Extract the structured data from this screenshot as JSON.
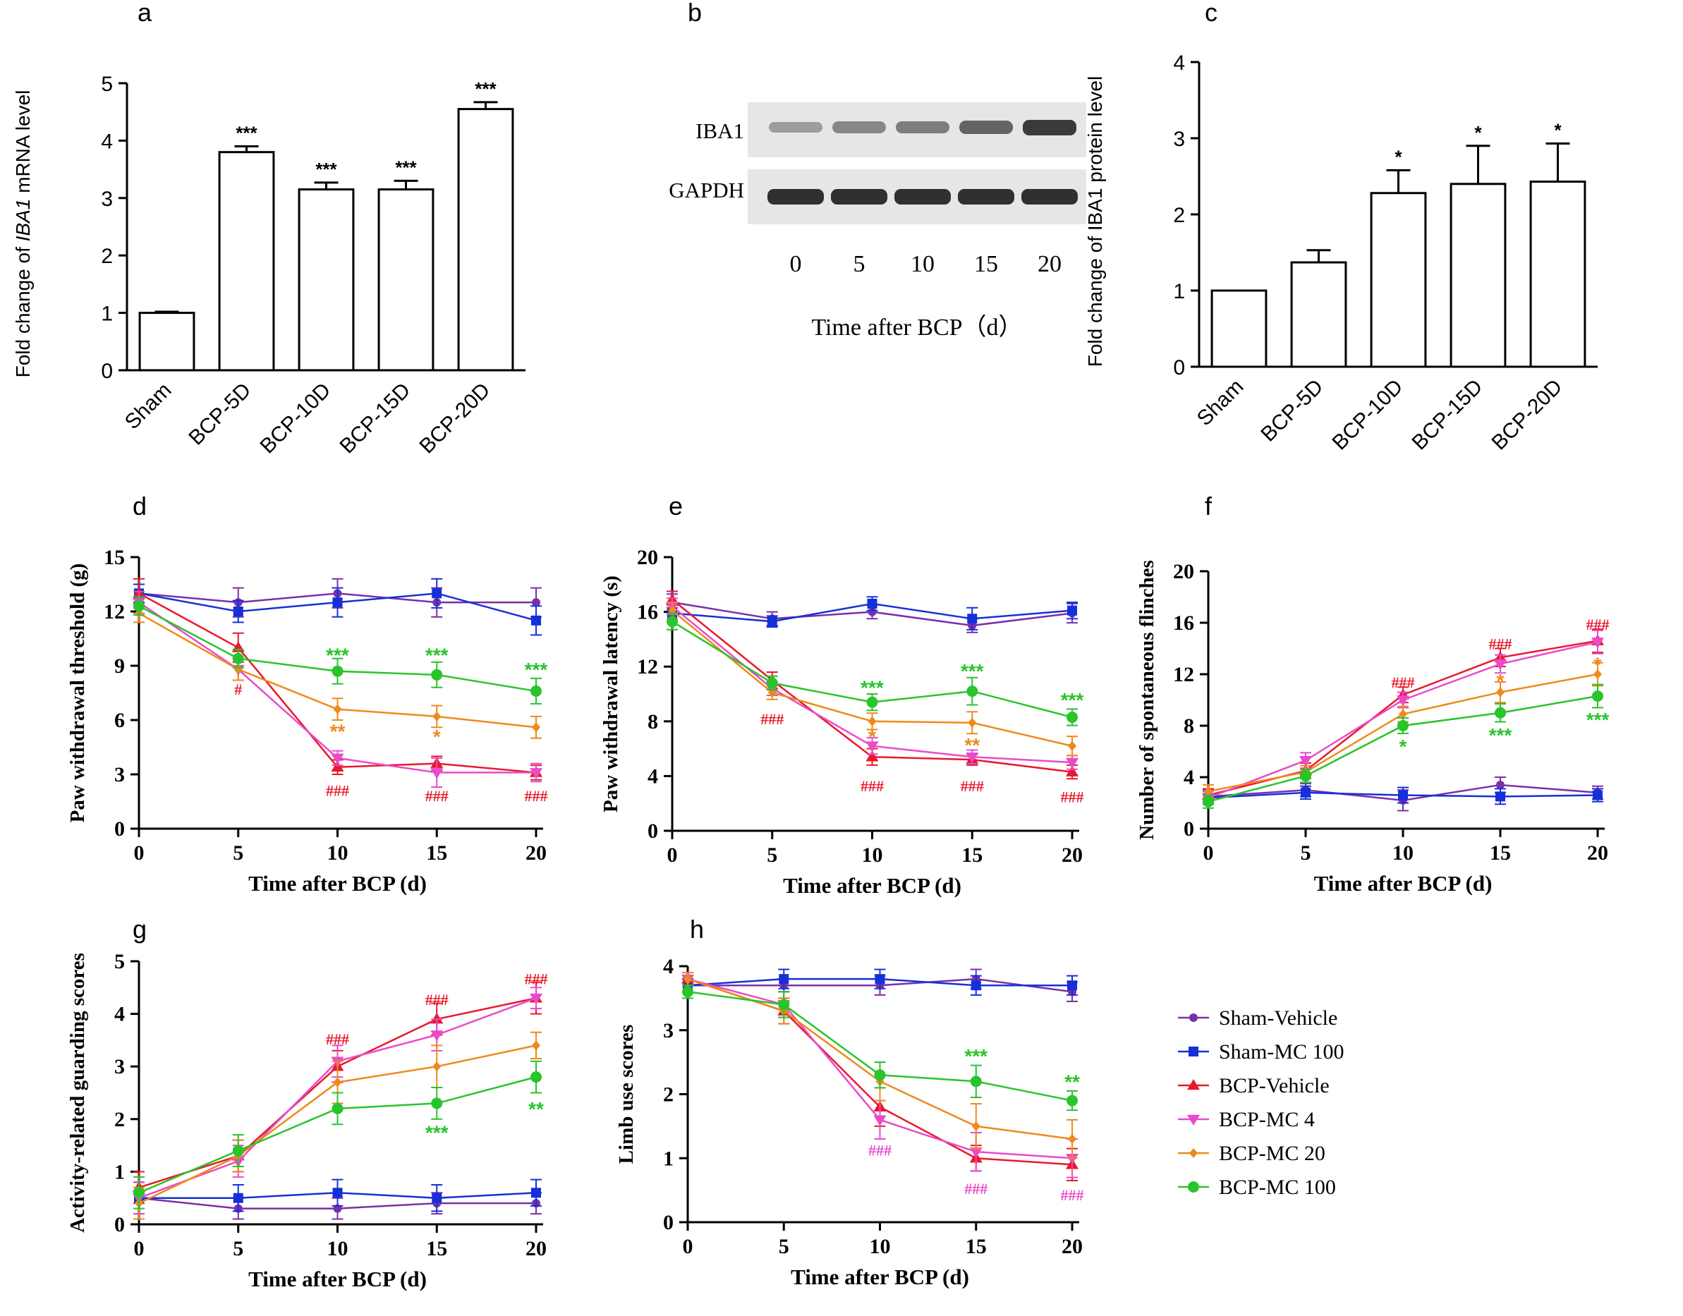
{
  "colors": {
    "sham_vehicle": "#7B2FA8",
    "sham_mc100": "#1530D8",
    "bcp_vehicle": "#E8192C",
    "bcp_mc4": "#E94BC9",
    "bcp_mc20": "#EE8A1C",
    "bcp_mc100": "#29C42C"
  },
  "panels": {
    "a": "a",
    "b": "b",
    "c": "c",
    "d": "d",
    "e": "e",
    "f": "f",
    "g": "g",
    "h": "h"
  },
  "blot": {
    "labels": [
      "IBA1",
      "GAPDH"
    ],
    "lanes": [
      "0",
      "5",
      "10",
      "15",
      "20"
    ],
    "xlabel": "Time after  BCP（d）",
    "iba1_intensity": [
      0.35,
      0.45,
      0.5,
      0.62,
      0.82
    ],
    "gapdh_intensity": [
      0.85,
      0.85,
      0.85,
      0.85,
      0.85
    ]
  },
  "legend": [
    "Sham-Vehicle",
    "Sham-MC 100",
    "BCP-Vehicle",
    "BCP-MC 4",
    "BCP-MC 20",
    "BCP-MC 100"
  ],
  "chart_data": [
    {
      "id": "a",
      "type": "bar",
      "ylabel_prefix": "Fold change of ",
      "ylabel_italic": "IBA1",
      "ylabel_suffix": " mRNA level",
      "categories": [
        "Sham",
        "BCP-5D",
        "BCP-10D",
        "BCP-15D",
        "BCP-20D"
      ],
      "values": [
        1.0,
        3.8,
        3.15,
        3.15,
        4.55
      ],
      "errors": [
        0.02,
        0.1,
        0.12,
        0.15,
        0.12
      ],
      "stars": [
        "",
        "***",
        "***",
        "***",
        "***"
      ],
      "ylim": [
        0,
        5
      ],
      "yticks": [
        "0",
        "1",
        "2",
        "3",
        "4",
        "5"
      ]
    },
    {
      "id": "c",
      "type": "bar",
      "ylabel": "Fold change of IBA1 protein level",
      "categories": [
        "Sham",
        "BCP-5D",
        "BCP-10D",
        "BCP-15D",
        "BCP-20D"
      ],
      "values": [
        1.0,
        1.37,
        2.28,
        2.4,
        2.43
      ],
      "errors": [
        0.0,
        0.16,
        0.3,
        0.5,
        0.5
      ],
      "stars": [
        "",
        "",
        "*",
        "*",
        "*"
      ],
      "ylim": [
        0,
        4
      ],
      "yticks": [
        "0",
        "1",
        "2",
        "3",
        "4"
      ]
    },
    {
      "id": "d",
      "type": "line",
      "xlabel": "Time after BCP (d)",
      "ylabel": "Paw withdrawal threshold (g)",
      "x": [
        0,
        5,
        10,
        15,
        20
      ],
      "xticks": [
        "0",
        "5",
        "10",
        "15",
        "20"
      ],
      "ylim": [
        0,
        15
      ],
      "yticks": [
        "0",
        "3",
        "6",
        "9",
        "12",
        "15"
      ],
      "series": [
        {
          "name": "Sham-Vehicle",
          "values": [
            13.0,
            12.5,
            13.0,
            12.5,
            12.5
          ],
          "errors": [
            0.5,
            0.8,
            0.8,
            0.8,
            0.8
          ]
        },
        {
          "name": "Sham-MC 100",
          "values": [
            13.0,
            12.0,
            12.5,
            13.0,
            11.5
          ],
          "errors": [
            0.5,
            0.6,
            0.8,
            0.8,
            0.8
          ]
        },
        {
          "name": "BCP-Vehicle",
          "values": [
            13.0,
            10.0,
            3.4,
            3.6,
            3.1
          ],
          "errors": [
            0.8,
            0.8,
            0.4,
            0.4,
            0.4
          ]
        },
        {
          "name": "BCP-MC 4",
          "values": [
            12.5,
            8.8,
            3.9,
            3.1,
            3.1
          ],
          "errors": [
            0.6,
            0.6,
            0.4,
            0.8,
            0.5
          ]
        },
        {
          "name": "BCP-MC 20",
          "values": [
            11.9,
            8.8,
            6.6,
            6.2,
            5.6
          ],
          "errors": [
            0.5,
            0.6,
            0.6,
            0.6,
            0.6
          ]
        },
        {
          "name": "BCP-MC 100",
          "values": [
            12.3,
            9.4,
            8.7,
            8.5,
            7.6
          ],
          "errors": [
            0.5,
            0.5,
            0.7,
            0.7,
            0.7
          ]
        }
      ],
      "annotations": [
        {
          "text": "***",
          "x": 10,
          "y": 9.6,
          "series": 5
        },
        {
          "text": "***",
          "x": 15,
          "y": 9.6,
          "series": 5
        },
        {
          "text": "***",
          "x": 20,
          "y": 8.8,
          "series": 5
        },
        {
          "text": "**",
          "x": 10,
          "y": 5.4,
          "series": 4
        },
        {
          "text": "*",
          "x": 15,
          "y": 5.1,
          "series": 4
        },
        {
          "text": "#",
          "x": 5,
          "y": 7.8,
          "series": 2
        },
        {
          "text": "###",
          "x": 10,
          "y": 2.2,
          "series": 2
        },
        {
          "text": "###",
          "x": 15,
          "y": 1.9,
          "series": 2
        },
        {
          "text": "###",
          "x": 20,
          "y": 1.9,
          "series": 2
        }
      ]
    },
    {
      "id": "e",
      "type": "line",
      "xlabel": "Time after BCP (d)",
      "ylabel": "Paw withdrawal latency (s)",
      "x": [
        0,
        5,
        10,
        15,
        20
      ],
      "xticks": [
        "0",
        "5",
        "10",
        "15",
        "20"
      ],
      "ylim": [
        0,
        20
      ],
      "yticks": [
        "0",
        "4",
        "8",
        "12",
        "16",
        "20"
      ],
      "series": [
        {
          "name": "Sham-Vehicle",
          "values": [
            16.7,
            15.5,
            16.0,
            15.0,
            15.9
          ],
          "errors": [
            0.6,
            0.5,
            0.5,
            0.5,
            0.7
          ]
        },
        {
          "name": "Sham-MC 100",
          "values": [
            15.9,
            15.3,
            16.6,
            15.5,
            16.1
          ],
          "errors": [
            0.6,
            0.4,
            0.5,
            0.8,
            0.6
          ]
        },
        {
          "name": "BCP-Vehicle",
          "values": [
            16.9,
            11.0,
            5.4,
            5.2,
            4.3
          ],
          "errors": [
            0.6,
            0.6,
            0.6,
            0.4,
            0.5
          ]
        },
        {
          "name": "BCP-MC 4",
          "values": [
            16.4,
            10.4,
            6.2,
            5.4,
            5.0
          ],
          "errors": [
            0.6,
            0.5,
            0.6,
            0.5,
            0.5
          ]
        },
        {
          "name": "BCP-MC 20",
          "values": [
            16.1,
            10.1,
            8.0,
            7.9,
            6.2
          ],
          "errors": [
            0.6,
            0.5,
            0.6,
            0.8,
            0.7
          ]
        },
        {
          "name": "BCP-MC 100",
          "values": [
            15.3,
            10.8,
            9.4,
            10.2,
            8.3
          ],
          "errors": [
            0.6,
            0.5,
            0.6,
            1.0,
            0.6
          ]
        }
      ],
      "annotations": [
        {
          "text": "***",
          "x": 10,
          "y": 10.5,
          "series": 5
        },
        {
          "text": "***",
          "x": 15,
          "y": 11.7,
          "series": 5
        },
        {
          "text": "***",
          "x": 20,
          "y": 9.6,
          "series": 5
        },
        {
          "text": "*",
          "x": 10,
          "y": 6.9,
          "series": 4
        },
        {
          "text": "**",
          "x": 15,
          "y": 6.3,
          "series": 4
        },
        {
          "text": "###",
          "x": 5,
          "y": 8.3,
          "series": 2
        },
        {
          "text": "###",
          "x": 10,
          "y": 3.4,
          "series": 2
        },
        {
          "text": "###",
          "x": 15,
          "y": 3.4,
          "series": 2
        },
        {
          "text": "###",
          "x": 20,
          "y": 2.6,
          "series": 2
        }
      ]
    },
    {
      "id": "f",
      "type": "line",
      "xlabel": "Time after BCP (d)",
      "ylabel": "Number of spontaneous flinches",
      "x": [
        0,
        5,
        10,
        15,
        20
      ],
      "xticks": [
        "0",
        "5",
        "10",
        "15",
        "20"
      ],
      "ylim": [
        0,
        20
      ],
      "yticks": [
        "0",
        "4",
        "8",
        "12",
        "16",
        "20"
      ],
      "series": [
        {
          "name": "Sham-Vehicle",
          "values": [
            2.5,
            3.0,
            2.2,
            3.4,
            2.8
          ],
          "errors": [
            0.5,
            0.5,
            0.8,
            0.6,
            0.5
          ]
        },
        {
          "name": "Sham-MC 100",
          "values": [
            2.4,
            2.8,
            2.6,
            2.5,
            2.6
          ],
          "errors": [
            0.5,
            0.5,
            0.6,
            0.6,
            0.5
          ]
        },
        {
          "name": "BCP-Vehicle",
          "values": [
            2.6,
            4.5,
            10.4,
            13.3,
            14.6
          ],
          "errors": [
            0.5,
            0.6,
            0.6,
            0.7,
            0.9
          ]
        },
        {
          "name": "BCP-MC 4",
          "values": [
            2.4,
            5.3,
            10.0,
            12.8,
            14.5
          ],
          "errors": [
            0.5,
            0.6,
            0.6,
            0.7,
            0.9
          ]
        },
        {
          "name": "BCP-MC 20",
          "values": [
            2.9,
            4.4,
            8.9,
            10.6,
            12.0
          ],
          "errors": [
            0.5,
            0.5,
            0.6,
            0.8,
            0.9
          ]
        },
        {
          "name": "BCP-MC 100",
          "values": [
            2.1,
            4.1,
            8.0,
            9.0,
            10.3
          ],
          "errors": [
            0.5,
            0.5,
            0.6,
            0.7,
            0.9
          ]
        }
      ],
      "annotations": [
        {
          "text": "###",
          "x": 10,
          "y": 11.5,
          "series": 2
        },
        {
          "text": "###",
          "x": 15,
          "y": 14.5,
          "series": 2
        },
        {
          "text": "###",
          "x": 20,
          "y": 16.0,
          "series": 2
        },
        {
          "text": "*",
          "x": 15,
          "y": 11.5,
          "series": 4
        },
        {
          "text": "*",
          "x": 20,
          "y": 12.8,
          "series": 4
        },
        {
          "text": "*",
          "x": 10,
          "y": 6.4,
          "series": 5
        },
        {
          "text": "***",
          "x": 15,
          "y": 7.3,
          "series": 5
        },
        {
          "text": "***",
          "x": 20,
          "y": 8.5,
          "series": 5
        }
      ]
    },
    {
      "id": "g",
      "type": "line",
      "xlabel": "Time after BCP (d)",
      "ylabel": "Activity-related guarding scores",
      "x": [
        0,
        5,
        10,
        15,
        20
      ],
      "xticks": [
        "0",
        "5",
        "10",
        "15",
        "20"
      ],
      "ylim": [
        0,
        5
      ],
      "yticks": [
        "0",
        "1",
        "2",
        "3",
        "4",
        "5"
      ],
      "series": [
        {
          "name": "Sham-Vehicle",
          "values": [
            0.5,
            0.3,
            0.3,
            0.4,
            0.4
          ],
          "errors": [
            0.3,
            0.2,
            0.2,
            0.2,
            0.2
          ]
        },
        {
          "name": "Sham-MC 100",
          "values": [
            0.5,
            0.5,
            0.6,
            0.5,
            0.6
          ],
          "errors": [
            0.3,
            0.25,
            0.25,
            0.25,
            0.25
          ]
        },
        {
          "name": "BCP-Vehicle",
          "values": [
            0.7,
            1.3,
            3.0,
            3.9,
            4.3
          ],
          "errors": [
            0.3,
            0.3,
            0.3,
            0.3,
            0.3
          ]
        },
        {
          "name": "BCP-MC 4",
          "values": [
            0.5,
            1.2,
            3.1,
            3.6,
            4.3
          ],
          "errors": [
            0.3,
            0.3,
            0.3,
            0.3,
            0.2
          ]
        },
        {
          "name": "BCP-MC 20",
          "values": [
            0.4,
            1.3,
            2.7,
            3.0,
            3.4
          ],
          "errors": [
            0.3,
            0.3,
            0.4,
            0.4,
            0.25
          ]
        },
        {
          "name": "BCP-MC 100",
          "values": [
            0.6,
            1.4,
            2.2,
            2.3,
            2.8
          ],
          "errors": [
            0.3,
            0.3,
            0.3,
            0.3,
            0.3
          ]
        }
      ],
      "annotations": [
        {
          "text": "###",
          "x": 10,
          "y": 3.55,
          "series": 2
        },
        {
          "text": "###",
          "x": 15,
          "y": 4.3,
          "series": 2
        },
        {
          "text": "###",
          "x": 20,
          "y": 4.7,
          "series": 2
        },
        {
          "text": "***",
          "x": 15,
          "y": 1.75,
          "series": 5
        },
        {
          "text": "**",
          "x": 20,
          "y": 2.2,
          "series": 5
        }
      ]
    },
    {
      "id": "h",
      "type": "line",
      "xlabel": "Time after BCP (d)",
      "ylabel": "Limb use scores",
      "x": [
        0,
        5,
        10,
        15,
        20
      ],
      "xticks": [
        "0",
        "5",
        "10",
        "15",
        "20"
      ],
      "ylim": [
        0,
        4
      ],
      "yticks": [
        "0",
        "1",
        "2",
        "3",
        "4"
      ],
      "series": [
        {
          "name": "Sham-Vehicle",
          "values": [
            3.7,
            3.7,
            3.7,
            3.8,
            3.6
          ],
          "errors": [
            0.1,
            0.1,
            0.15,
            0.15,
            0.15
          ]
        },
        {
          "name": "Sham-MC 100",
          "values": [
            3.7,
            3.8,
            3.8,
            3.7,
            3.7
          ],
          "errors": [
            0.1,
            0.15,
            0.15,
            0.15,
            0.15
          ]
        },
        {
          "name": "BCP-Vehicle",
          "values": [
            3.8,
            3.3,
            1.8,
            1.0,
            0.9
          ],
          "errors": [
            0.1,
            0.2,
            0.3,
            0.2,
            0.25
          ]
        },
        {
          "name": "BCP-MC 4",
          "values": [
            3.8,
            3.4,
            1.6,
            1.1,
            1.0
          ],
          "errors": [
            0.1,
            0.2,
            0.3,
            0.3,
            0.3
          ]
        },
        {
          "name": "BCP-MC 20",
          "values": [
            3.8,
            3.3,
            2.2,
            1.5,
            1.3
          ],
          "errors": [
            0.1,
            0.2,
            0.3,
            0.35,
            0.3
          ]
        },
        {
          "name": "BCP-MC 100",
          "values": [
            3.6,
            3.4,
            2.3,
            2.2,
            1.9
          ],
          "errors": [
            0.1,
            0.2,
            0.2,
            0.25,
            0.15
          ]
        }
      ],
      "annotations": [
        {
          "text": "***",
          "x": 15,
          "y": 2.6,
          "series": 5
        },
        {
          "text": "**",
          "x": 20,
          "y": 2.2,
          "series": 5
        },
        {
          "text": "###",
          "x": 10,
          "y": 1.15,
          "series": 3
        },
        {
          "text": "###",
          "x": 15,
          "y": 0.55,
          "series": 3
        },
        {
          "text": "###",
          "x": 20,
          "y": 0.45,
          "series": 3
        }
      ]
    }
  ]
}
